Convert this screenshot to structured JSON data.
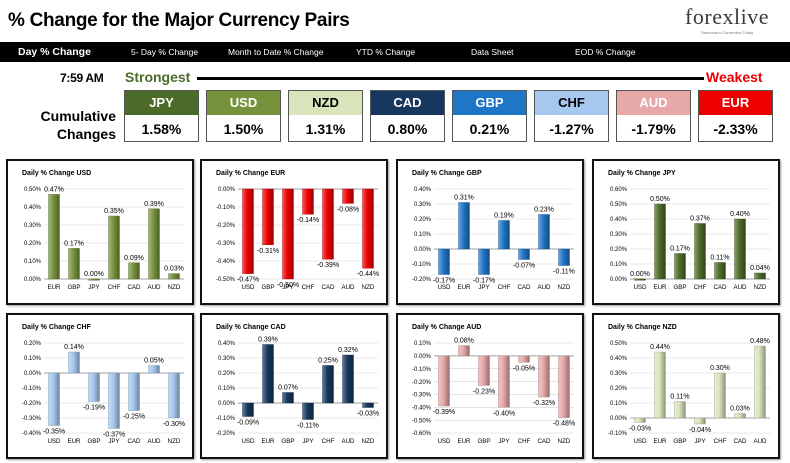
{
  "header": {
    "title": "% Change for the Major Currency Pairs",
    "brand": "forexlive",
    "brand_tagline": "Tomorrow's Currencies Today"
  },
  "nav": {
    "tabs": [
      {
        "label": "Day % Change",
        "active": true
      },
      {
        "label": "5- Day % Change",
        "active": false
      },
      {
        "label": "Month to Date % Change",
        "active": false
      },
      {
        "label": "YTD % Change",
        "active": false
      },
      {
        "label": "Data Sheet",
        "active": false
      },
      {
        "label": "EOD % Change",
        "active": false
      }
    ]
  },
  "summary": {
    "time": "7:59 AM",
    "strongest_label": "Strongest",
    "weakest_label": "Weakest",
    "cumulative_label_line1": "Cumulative",
    "cumulative_label_line2": "Changes",
    "currencies": [
      {
        "code": "JPY",
        "value": "1.58%",
        "color": "#4d6b28",
        "text_color": "#ffffff"
      },
      {
        "code": "USD",
        "value": "1.50%",
        "color": "#76923c",
        "text_color": "#ffffff"
      },
      {
        "code": "NZD",
        "value": "1.31%",
        "color": "#d8e4bc",
        "text_color": "#000000"
      },
      {
        "code": "CAD",
        "value": "0.80%",
        "color": "#17375e",
        "text_color": "#ffffff"
      },
      {
        "code": "GBP",
        "value": "0.21%",
        "color": "#1f75c6",
        "text_color": "#ffffff"
      },
      {
        "code": "CHF",
        "value": "-1.27%",
        "color": "#a6c8ee",
        "text_color": "#000000"
      },
      {
        "code": "AUD",
        "value": "-1.79%",
        "color": "#e6a8a8",
        "text_color": "#ffffff"
      },
      {
        "code": "EUR",
        "value": "-2.33%",
        "color": "#ee0000",
        "text_color": "#ffffff"
      }
    ]
  },
  "chart_data": [
    {
      "type": "bar",
      "title": "Daily % Change USD",
      "categories": [
        "EUR",
        "GBP",
        "JPY",
        "CHF",
        "CAD",
        "AUD",
        "NZD"
      ],
      "values": [
        0.47,
        0.17,
        0.0,
        0.35,
        0.09,
        0.39,
        0.03
      ],
      "labels": [
        "0.47%",
        "0.17%",
        "0.00%",
        "0.35%",
        "0.09%",
        "0.39%",
        "0.03%"
      ],
      "ylim": [
        0,
        0.5
      ],
      "yticks": [
        "0.00%",
        "0.10%",
        "0.20%",
        "0.30%",
        "0.40%",
        "0.50%"
      ],
      "color": "#76923c",
      "grid": true
    },
    {
      "type": "bar",
      "title": "Daily % Change EUR",
      "categories": [
        "USD",
        "GBP",
        "JPY",
        "CHF",
        "CAD",
        "AUD",
        "NZD"
      ],
      "values": [
        -0.47,
        -0.31,
        -0.5,
        -0.14,
        -0.39,
        -0.08,
        -0.44
      ],
      "labels": [
        "-0.47%",
        "-0.31%",
        "-0.50%",
        "-0.14%",
        "-0.39%",
        "-0.08%",
        "-0.44%"
      ],
      "ylim": [
        -0.5,
        0
      ],
      "yticks": [
        "-0.50%",
        "-0.40%",
        "-0.30%",
        "-0.20%",
        "-0.10%",
        "0.00%"
      ],
      "color": "#ee0000",
      "grid": true
    },
    {
      "type": "bar",
      "title": "Daily % Change GBP",
      "categories": [
        "USD",
        "EUR",
        "JPY",
        "CHF",
        "CAD",
        "AUD",
        "NZD"
      ],
      "values": [
        -0.17,
        0.31,
        -0.17,
        0.19,
        -0.07,
        0.23,
        -0.11
      ],
      "labels": [
        "-0.17%",
        "0.31%",
        "-0.17%",
        "0.19%",
        "-0.07%",
        "0.23%",
        "-0.11%"
      ],
      "ylim": [
        -0.2,
        0.4
      ],
      "yticks": [
        "-0.20%",
        "-0.10%",
        "0.00%",
        "0.10%",
        "0.20%",
        "0.30%",
        "0.40%"
      ],
      "color": "#1f75c6",
      "grid": true
    },
    {
      "type": "bar",
      "title": "Daily % Change JPY",
      "categories": [
        "USD",
        "EUR",
        "GBP",
        "CHF",
        "CAD",
        "AUD",
        "NZD"
      ],
      "values": [
        0.0,
        0.5,
        0.17,
        0.37,
        0.11,
        0.4,
        0.04
      ],
      "labels": [
        "0.00%",
        "0.50%",
        "0.17%",
        "0.37%",
        "0.11%",
        "0.40%",
        "0.04%"
      ],
      "ylim": [
        0,
        0.6
      ],
      "yticks": [
        "0.00%",
        "0.10%",
        "0.20%",
        "0.30%",
        "0.40%",
        "0.50%",
        "0.60%"
      ],
      "color": "#4d6b28",
      "grid": true
    },
    {
      "type": "bar",
      "title": "Daily % Change CHF",
      "categories": [
        "USD",
        "EUR",
        "GBP",
        "JPY",
        "CAD",
        "AUD",
        "NZD"
      ],
      "values": [
        -0.35,
        0.14,
        -0.19,
        -0.37,
        -0.25,
        0.05,
        -0.3
      ],
      "labels": [
        "-0.35%",
        "0.14%",
        "-0.19%",
        "-0.37%",
        "-0.25%",
        "0.05%",
        "-0.30%"
      ],
      "ylim": [
        -0.4,
        0.2
      ],
      "yticks": [
        "-0.40%",
        "-0.30%",
        "-0.20%",
        "-0.10%",
        "0.00%",
        "0.10%",
        "0.20%"
      ],
      "color": "#a6c8ee",
      "grid": true
    },
    {
      "type": "bar",
      "title": "Daily % Change CAD",
      "categories": [
        "USD",
        "EUR",
        "GBP",
        "JPY",
        "CHF",
        "AUD",
        "NZD"
      ],
      "values": [
        -0.09,
        0.39,
        0.07,
        -0.11,
        0.25,
        0.32,
        -0.03
      ],
      "labels": [
        "-0.09%",
        "0.39%",
        "0.07%",
        "-0.11%",
        "0.25%",
        "0.32%",
        "-0.03%"
      ],
      "ylim": [
        -0.2,
        0.4
      ],
      "yticks": [
        "-0.20%",
        "-0.10%",
        "0.00%",
        "0.10%",
        "0.20%",
        "0.30%",
        "0.40%"
      ],
      "color": "#17375e",
      "grid": true
    },
    {
      "type": "bar",
      "title": "Daily % Change AUD",
      "categories": [
        "USD",
        "EUR",
        "GBP",
        "JPY",
        "CHF",
        "CAD",
        "NZD"
      ],
      "values": [
        -0.39,
        0.08,
        -0.23,
        -0.4,
        -0.05,
        -0.32,
        -0.48
      ],
      "labels": [
        "-0.39%",
        "0.08%",
        "-0.23%",
        "-0.40%",
        "-0.05%",
        "-0.32%",
        "-0.48%"
      ],
      "ylim": [
        -0.6,
        0.1
      ],
      "yticks": [
        "-0.60%",
        "-0.50%",
        "-0.40%",
        "-0.30%",
        "-0.20%",
        "-0.10%",
        "0.00%",
        "0.10%"
      ],
      "color": "#e6a8a8",
      "grid": true
    },
    {
      "type": "bar",
      "title": "Daily % Change NZD",
      "categories": [
        "USD",
        "EUR",
        "GBP",
        "JPY",
        "CHF",
        "CAD",
        "AUD"
      ],
      "values": [
        -0.03,
        0.44,
        0.11,
        -0.04,
        0.3,
        0.03,
        0.48
      ],
      "labels": [
        "-0.03%",
        "0.44%",
        "0.11%",
        "-0.04%",
        "0.30%",
        "0.03%",
        "0.48%"
      ],
      "ylim": [
        -0.1,
        0.5
      ],
      "yticks": [
        "-0.10%",
        "0.00%",
        "0.10%",
        "0.20%",
        "0.30%",
        "0.40%",
        "0.50%"
      ],
      "color": "#d8e4bc",
      "grid": true
    }
  ]
}
